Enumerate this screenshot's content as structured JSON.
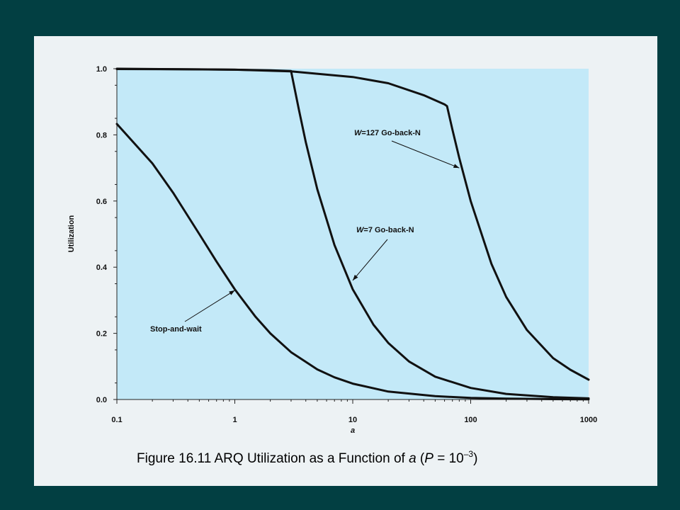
{
  "chart_data": {
    "type": "line",
    "xscale": "log",
    "xlim": [
      0.1,
      1000
    ],
    "ylim": [
      0.0,
      1.0
    ],
    "xlabel": "a",
    "ylabel": "Utilization",
    "x_ticks": [
      0.1,
      1,
      10,
      100,
      1000
    ],
    "x_tick_labels": [
      "0.1",
      "1",
      "10",
      "100",
      "1000"
    ],
    "y_ticks": [
      0.0,
      0.2,
      0.4,
      0.6,
      0.8,
      1.0
    ],
    "y_tick_labels": [
      "0.0",
      "0.2",
      "0.4",
      "0.6",
      "0.8",
      "1.0"
    ],
    "grid": false,
    "plot_background": "#c3e9f8",
    "line_color": "#111111",
    "series": [
      {
        "name": "Stop-and-wait",
        "x": [
          0.1,
          0.2,
          0.3,
          0.5,
          0.7,
          1,
          1.5,
          2,
          3,
          5,
          7,
          10,
          20,
          50,
          100,
          200,
          500,
          1000
        ],
        "y": [
          0.833,
          0.714,
          0.625,
          0.5,
          0.417,
          0.333,
          0.25,
          0.2,
          0.143,
          0.091,
          0.067,
          0.048,
          0.024,
          0.01,
          0.005,
          0.0025,
          0.001,
          0.0005
        ]
      },
      {
        "name": "W=7 Go-back-N",
        "x": [
          0.1,
          0.5,
          1,
          2,
          3,
          3.5,
          4,
          5,
          7,
          10,
          15,
          20,
          30,
          50,
          100,
          200,
          500,
          1000
        ],
        "y": [
          0.999,
          0.998,
          0.997,
          0.995,
          0.993,
          0.875,
          0.778,
          0.636,
          0.467,
          0.333,
          0.226,
          0.171,
          0.115,
          0.069,
          0.035,
          0.017,
          0.007,
          0.0035
        ]
      },
      {
        "name": "W=127 Go-back-N",
        "x": [
          0.1,
          1,
          3,
          10,
          20,
          40,
          60,
          63,
          70,
          80,
          100,
          150,
          200,
          300,
          500,
          700,
          1000
        ],
        "y": [
          1.0,
          0.997,
          0.992,
          0.975,
          0.956,
          0.92,
          0.892,
          0.887,
          0.816,
          0.73,
          0.6,
          0.41,
          0.31,
          0.21,
          0.125,
          0.09,
          0.06
        ]
      }
    ],
    "annotations": [
      {
        "series": 2,
        "italic": "W",
        "text": "=127 Go-back-N",
        "arrow_to": [
          80,
          0.7
        ]
      },
      {
        "series": 1,
        "italic": "W",
        "text": "=7 Go-back-N",
        "arrow_to": [
          10,
          0.36
        ]
      },
      {
        "series": 0,
        "italic": "",
        "text": "Stop-and-wait",
        "arrow_to": [
          1,
          0.33
        ]
      }
    ]
  },
  "caption": {
    "prefix": "Figure 16.11  ARQ Utilization as a Function of ",
    "var_a": "a",
    "open_paren": " (",
    "var_p": "P",
    "equals": " = 10",
    "exponent": "–3",
    "close_paren": ")"
  }
}
